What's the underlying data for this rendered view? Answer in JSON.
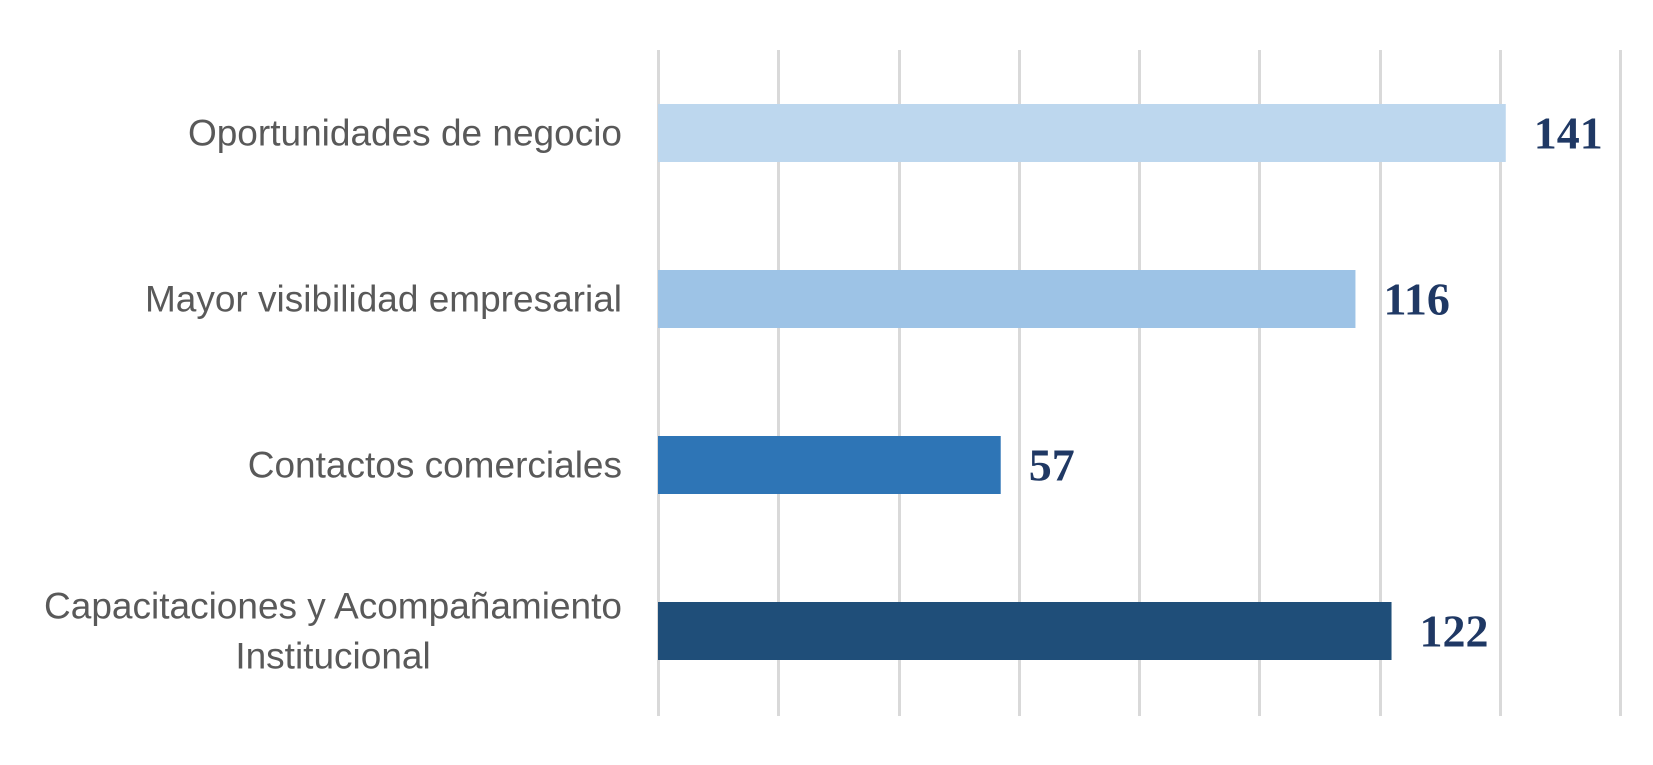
{
  "chart_data": {
    "type": "bar",
    "orientation": "horizontal",
    "title": "",
    "xlabel": "",
    "ylabel": "",
    "categories": [
      "Oportunidades de negocio",
      "Mayor visibilidad empresarial",
      "Contactos comerciales",
      "Capacitaciones y Acompañamiento Institucional"
    ],
    "category_lines": [
      [
        "Oportunidades de negocio"
      ],
      [
        "Mayor visibilidad empresarial"
      ],
      [
        "Contactos comerciales"
      ],
      [
        "Capacitaciones y Acompañamiento",
        "Institucional"
      ]
    ],
    "values": [
      141,
      116,
      57,
      122
    ],
    "value_labels": [
      "141",
      "116",
      "57",
      "122"
    ],
    "colors": [
      "#bdd7ee",
      "#9dc3e6",
      "#2e75b6",
      "#1f4e79"
    ],
    "xlim": [
      0,
      160
    ],
    "grid_step": 20,
    "grid": true,
    "legend": "none",
    "axis_tick_labels_shown": false
  }
}
